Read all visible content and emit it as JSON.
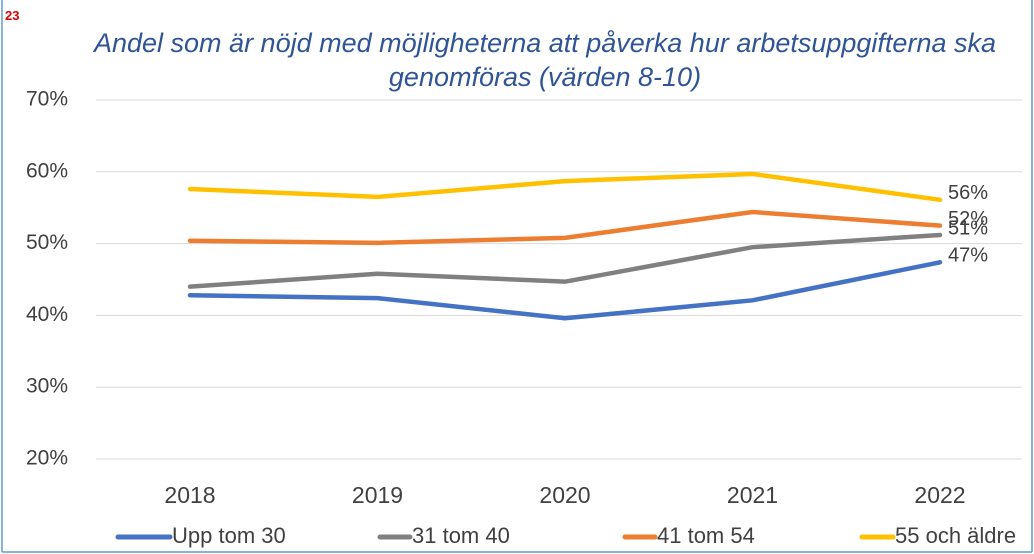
{
  "page_number": "23",
  "chart_data": {
    "type": "line",
    "title": "Andel som är nöjd med möjligheterna att påverka hur arbetsuppgifterna ska genomföras (värden 8-10)",
    "categories": [
      "2018",
      "2019",
      "2020",
      "2021",
      "2022"
    ],
    "series": [
      {
        "name": "Upp tom 30",
        "color": "#4472c4",
        "values": [
          42.8,
          42.4,
          39.6,
          42.1,
          47.4
        ],
        "value_labels": [
          null,
          null,
          null,
          null,
          "47%"
        ]
      },
      {
        "name": "31 tom 40",
        "color": "#808080",
        "values": [
          44.0,
          45.8,
          44.7,
          49.5,
          51.2
        ],
        "value_labels": [
          null,
          null,
          null,
          null,
          "51%"
        ]
      },
      {
        "name": "41 tom 54",
        "color": "#ed7d31",
        "values": [
          50.4,
          50.1,
          50.8,
          54.4,
          52.5
        ],
        "value_labels": [
          null,
          null,
          null,
          null,
          "52%"
        ]
      },
      {
        "name": "55 och äldre",
        "color": "#ffc000",
        "values": [
          57.6,
          56.5,
          58.7,
          59.7,
          56.1
        ],
        "value_labels": [
          null,
          null,
          null,
          null,
          "56%"
        ]
      }
    ],
    "ylim": [
      20,
      70
    ],
    "yticks": [
      {
        "value": 20,
        "label": "20%"
      },
      {
        "value": 30,
        "label": "30%"
      },
      {
        "value": 40,
        "label": "40%"
      },
      {
        "value": 50,
        "label": "50%"
      },
      {
        "value": 60,
        "label": "60%"
      },
      {
        "value": 70,
        "label": "70%"
      }
    ],
    "grid": true,
    "legend": "bottom"
  }
}
